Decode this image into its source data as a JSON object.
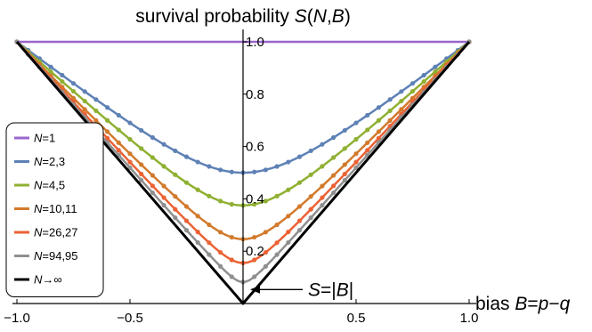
{
  "chart_data": {
    "type": "line",
    "title": "survival probability S(N,B)",
    "xlabel": "bias B=p−q",
    "ylabel": "",
    "xlim": [
      -1.0,
      1.0
    ],
    "ylim": [
      0.0,
      1.03
    ],
    "x_ticks": [
      -1.0,
      -0.5,
      0.5,
      1.0
    ],
    "x_tick_labels": [
      "−1.0",
      "−0.5",
      "0.5",
      "1.0"
    ],
    "y_ticks": [
      0.2,
      0.4,
      0.6,
      0.8,
      1.0
    ],
    "y_tick_labels": [
      "0.2",
      "0.4",
      "0.6",
      "0.8",
      "1.0"
    ],
    "legend_position": "left",
    "series": [
      {
        "name": "N=1",
        "label_var": "N",
        "label_rest": "=1",
        "color": "#9966CC",
        "x": [
          -1.0,
          1.0
        ],
        "y": [
          1.0,
          1.0
        ],
        "markers": false,
        "endpoints": true
      },
      {
        "name": "N=2,3",
        "label_var": "N",
        "label_rest": "=2,3",
        "color": "#5E81B5",
        "min": 0.5,
        "markers": true
      },
      {
        "name": "N=4,5",
        "label_var": "N",
        "label_rest": "=4,5",
        "color": "#8FB032",
        "min": 0.375,
        "markers": true
      },
      {
        "name": "N=10,11",
        "label_var": "N",
        "label_rest": "=10,11",
        "color": "#D27A2C",
        "min": 0.246,
        "markers": true
      },
      {
        "name": "N=26,27",
        "label_var": "N",
        "label_rest": "=26,27",
        "color": "#EB6235",
        "min": 0.155,
        "markers": true
      },
      {
        "name": "N=94,95",
        "label_var": "N",
        "label_rest": "=94,95",
        "color": "#8F8F8F",
        "min": 0.082,
        "markers": true
      },
      {
        "name": "N→∞",
        "label_var": "N",
        "label_rest": "→∞",
        "color": "#000000",
        "x": [
          -1.0,
          0.0,
          1.0
        ],
        "y": [
          1.0,
          0.0,
          1.0
        ],
        "markers": false
      }
    ],
    "annotation": {
      "var1": "S",
      "rest": "=|",
      "var2": "B",
      "end": "|",
      "x": 0.0,
      "y": 0.05
    }
  }
}
